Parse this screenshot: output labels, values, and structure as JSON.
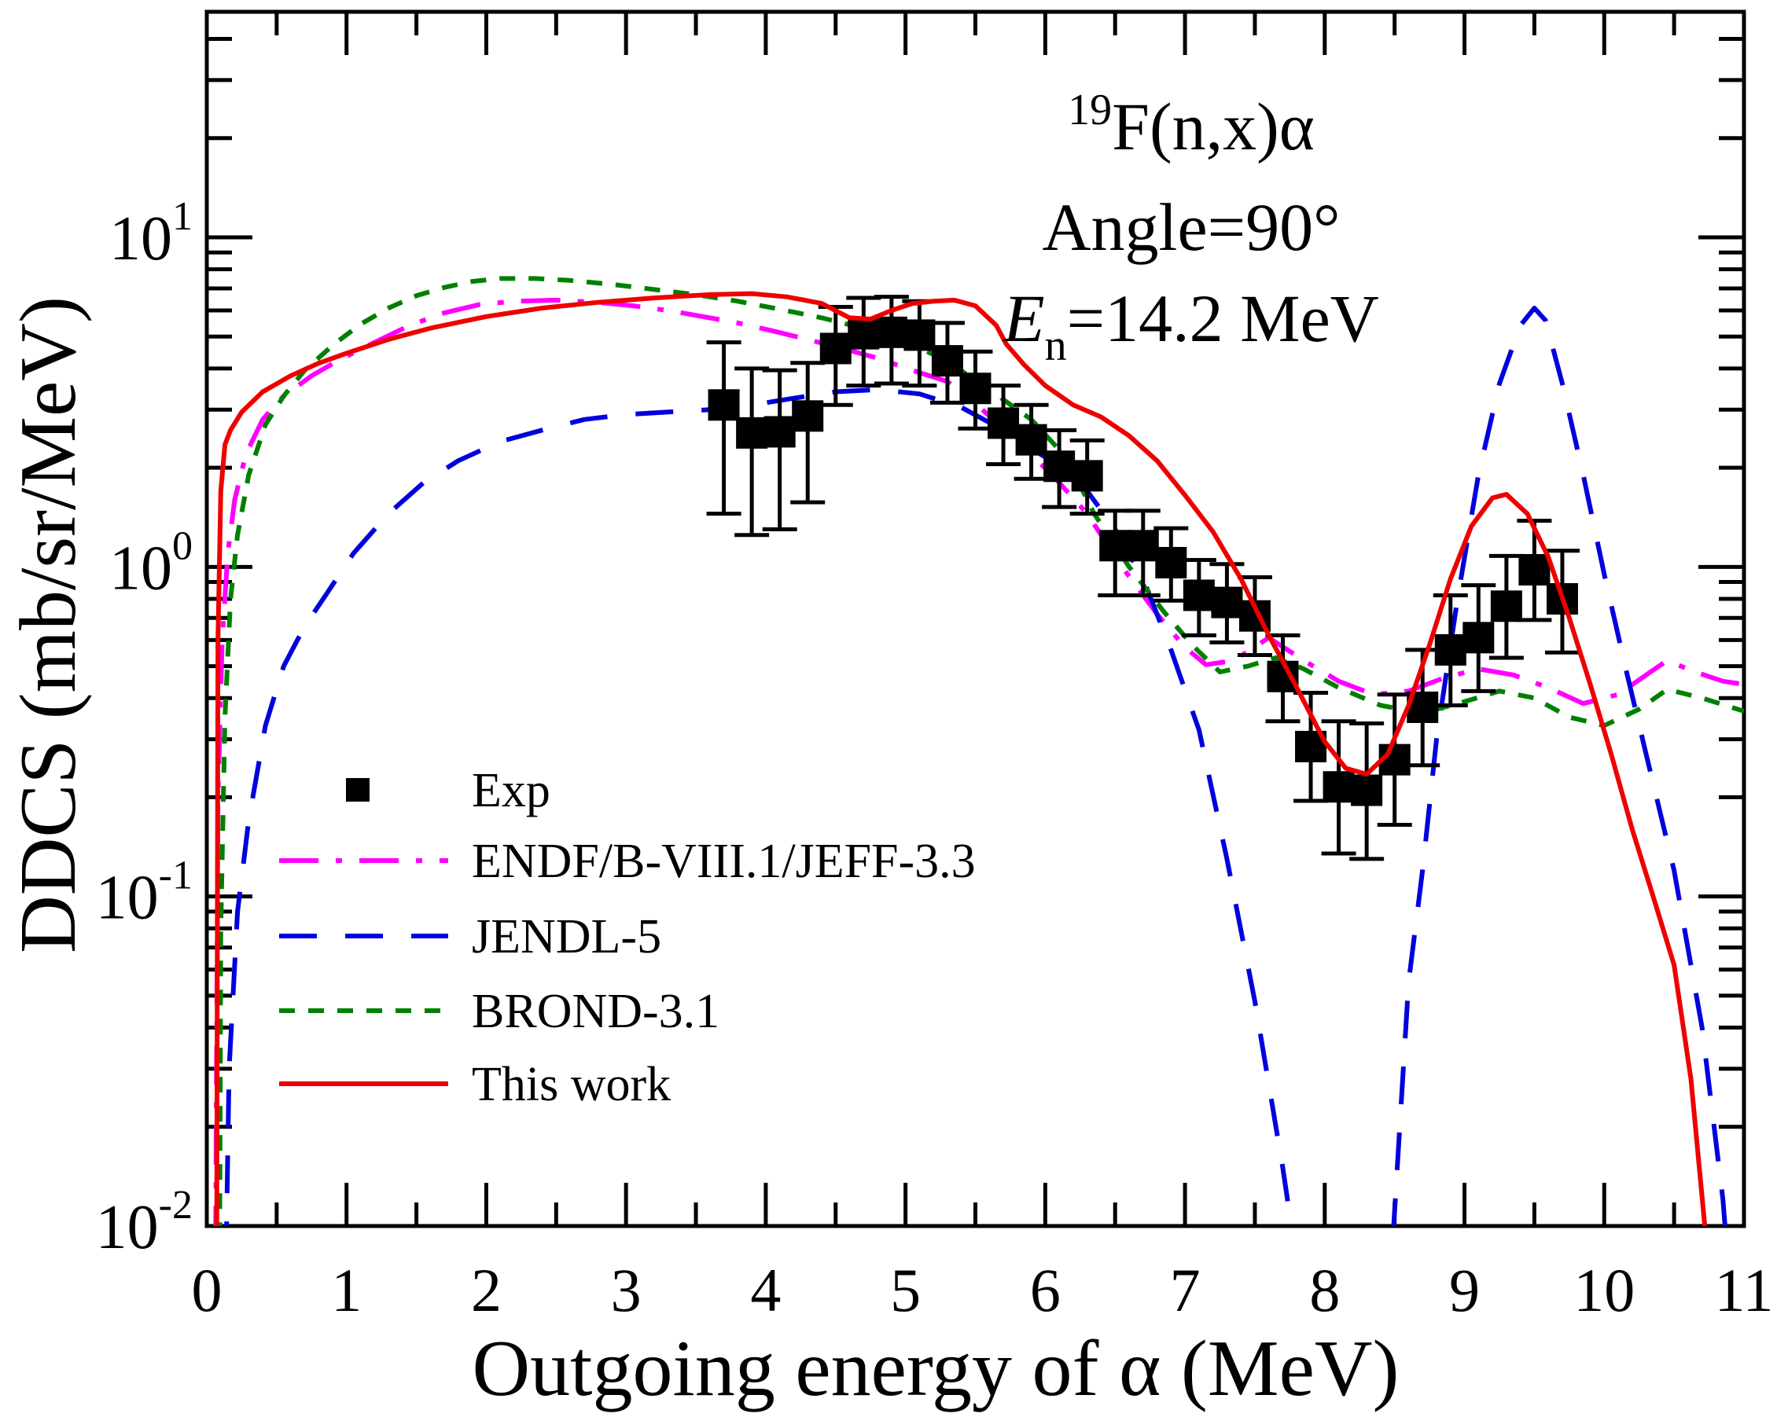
{
  "chart_data": {
    "type": "line",
    "title": "",
    "xlabel": "Outgoing energy of α (MeV)",
    "ylabel": "DDCS (mb/sr/MeV)",
    "x_axis": {
      "min": 0,
      "max": 11,
      "major_tick_step": 1,
      "minor_tick_step": 0.5,
      "tick_labels": [
        "0",
        "1",
        "2",
        "3",
        "4",
        "5",
        "6",
        "7",
        "8",
        "9",
        "10",
        "11"
      ]
    },
    "y_axis": {
      "scale": "log",
      "min": 0.01,
      "max": 48,
      "tick_values": [
        10,
        1,
        0.1,
        0.01
      ],
      "tick_labels": [
        {
          "base": "10",
          "exp": "1"
        },
        {
          "base": "10",
          "exp": "0"
        },
        {
          "base": "10",
          "exp": "-1"
        },
        {
          "base": "10",
          "exp": "-2"
        }
      ]
    },
    "annotations": [
      {
        "id": "reaction",
        "parts": [
          {
            "t": "19",
            "sup": true
          },
          {
            "t": "F(n,x)α"
          }
        ]
      },
      {
        "id": "angle",
        "parts": [
          {
            "t": "Angle=90°"
          }
        ]
      },
      {
        "id": "energy",
        "parts": [
          {
            "t": "E",
            "italic": true
          },
          {
            "t": "n",
            "sub": true
          },
          {
            "t": "=14.2 MeV"
          }
        ]
      }
    ],
    "exp": {
      "label": "Exp",
      "marker": "square",
      "color": "#000000",
      "points_format": [
        "E_MeV",
        "value",
        "err_low",
        "err_high"
      ],
      "points": [
        [
          3.7,
          3.1,
          1.45,
          4.8
        ],
        [
          3.9,
          2.55,
          1.25,
          4.0
        ],
        [
          4.1,
          2.57,
          1.3,
          3.95
        ],
        [
          4.3,
          2.87,
          1.57,
          4.16
        ],
        [
          4.5,
          4.6,
          3.1,
          6.15
        ],
        [
          4.7,
          5.1,
          3.55,
          6.55
        ],
        [
          4.9,
          5.15,
          3.6,
          6.6
        ],
        [
          5.1,
          5.05,
          3.55,
          6.4
        ],
        [
          5.3,
          4.22,
          3.15,
          5.5
        ],
        [
          5.5,
          3.48,
          2.63,
          4.5
        ],
        [
          5.7,
          2.73,
          2.05,
          3.55
        ],
        [
          5.9,
          2.43,
          1.85,
          3.1
        ],
        [
          6.1,
          2.02,
          1.52,
          2.6
        ],
        [
          6.3,
          1.89,
          1.45,
          2.42
        ],
        [
          6.5,
          1.16,
          0.82,
          1.48
        ],
        [
          6.7,
          1.16,
          0.82,
          1.48
        ],
        [
          6.9,
          1.03,
          0.79,
          1.31
        ],
        [
          7.1,
          0.82,
          0.62,
          1.05
        ],
        [
          7.3,
          0.78,
          0.59,
          1.02
        ],
        [
          7.5,
          0.71,
          0.54,
          0.93
        ],
        [
          7.7,
          0.465,
          0.34,
          0.62
        ],
        [
          7.9,
          0.285,
          0.195,
          0.415
        ],
        [
          8.1,
          0.215,
          0.135,
          0.34
        ],
        [
          8.3,
          0.21,
          0.13,
          0.335
        ],
        [
          8.5,
          0.26,
          0.165,
          0.41
        ],
        [
          8.7,
          0.375,
          0.25,
          0.56
        ],
        [
          8.9,
          0.56,
          0.38,
          0.82
        ],
        [
          9.1,
          0.61,
          0.42,
          0.88
        ],
        [
          9.3,
          0.76,
          0.53,
          1.08
        ],
        [
          9.5,
          0.98,
          0.69,
          1.38
        ],
        [
          9.7,
          0.8,
          0.55,
          1.12
        ]
      ]
    },
    "series": [
      {
        "name": "ENDF/B-VIII.1/JEFF-3.3",
        "color": "#ff00ff",
        "line_style": "dash-dot",
        "points": [
          [
            0.06,
            0.005
          ],
          [
            0.08,
            0.2
          ],
          [
            0.11,
            0.6
          ],
          [
            0.15,
            1.1
          ],
          [
            0.2,
            1.6
          ],
          [
            0.28,
            2.2
          ],
          [
            0.4,
            2.8
          ],
          [
            0.55,
            3.3
          ],
          [
            0.75,
            3.8
          ],
          [
            0.95,
            4.25
          ],
          [
            1.2,
            4.8
          ],
          [
            1.45,
            5.4
          ],
          [
            1.7,
            5.9
          ],
          [
            1.95,
            6.25
          ],
          [
            2.2,
            6.4
          ],
          [
            2.5,
            6.45
          ],
          [
            2.8,
            6.35
          ],
          [
            3.05,
            6.2
          ],
          [
            3.3,
            6.0
          ],
          [
            3.55,
            5.75
          ],
          [
            3.8,
            5.5
          ],
          [
            4.05,
            5.2
          ],
          [
            4.3,
            4.9
          ],
          [
            4.55,
            4.6
          ],
          [
            4.8,
            4.3
          ],
          [
            5.05,
            3.95
          ],
          [
            5.3,
            3.65
          ],
          [
            5.55,
            3.0
          ],
          [
            5.8,
            2.4
          ],
          [
            6.05,
            1.9
          ],
          [
            6.3,
            1.45
          ],
          [
            6.55,
            1.0
          ],
          [
            6.8,
            0.72
          ],
          [
            7.0,
            0.57
          ],
          [
            7.15,
            0.505
          ],
          [
            7.35,
            0.52
          ],
          [
            7.6,
            0.61
          ],
          [
            7.85,
            0.52
          ],
          [
            8.1,
            0.45
          ],
          [
            8.35,
            0.41
          ],
          [
            8.6,
            0.42
          ],
          [
            8.85,
            0.46
          ],
          [
            9.1,
            0.49
          ],
          [
            9.35,
            0.47
          ],
          [
            9.6,
            0.43
          ],
          [
            9.85,
            0.385
          ],
          [
            10.1,
            0.41
          ],
          [
            10.3,
            0.47
          ],
          [
            10.45,
            0.52
          ],
          [
            10.65,
            0.48
          ],
          [
            10.85,
            0.45
          ],
          [
            11.0,
            0.44
          ]
        ]
      },
      {
        "name": "JENDL-5",
        "color": "#0000dd",
        "line_style": "dashed",
        "points": [
          [
            0.13,
            0.005
          ],
          [
            0.16,
            0.03
          ],
          [
            0.22,
            0.09
          ],
          [
            0.3,
            0.17
          ],
          [
            0.42,
            0.33
          ],
          [
            0.55,
            0.5
          ],
          [
            0.7,
            0.66
          ],
          [
            0.85,
            0.82
          ],
          [
            1.05,
            1.1
          ],
          [
            1.3,
            1.45
          ],
          [
            1.55,
            1.8
          ],
          [
            1.8,
            2.1
          ],
          [
            2.1,
            2.4
          ],
          [
            2.4,
            2.6
          ],
          [
            2.7,
            2.8
          ],
          [
            3.0,
            2.9
          ],
          [
            3.3,
            2.95
          ],
          [
            3.6,
            3.0
          ],
          [
            3.9,
            3.1
          ],
          [
            4.2,
            3.25
          ],
          [
            4.5,
            3.4
          ],
          [
            4.8,
            3.45
          ],
          [
            5.1,
            3.35
          ],
          [
            5.4,
            3.05
          ],
          [
            5.7,
            2.6
          ],
          [
            6.0,
            2.15
          ],
          [
            6.3,
            1.7
          ],
          [
            6.5,
            1.3
          ],
          [
            6.7,
            0.92
          ],
          [
            6.9,
            0.56
          ],
          [
            7.1,
            0.32
          ],
          [
            7.3,
            0.13
          ],
          [
            7.5,
            0.048
          ],
          [
            7.7,
            0.015
          ],
          [
            7.9,
            0.004
          ],
          [
            8.2,
            0.002
          ],
          [
            8.45,
            0.005
          ],
          [
            8.6,
            0.055
          ],
          [
            8.7,
            0.12
          ],
          [
            8.8,
            0.3
          ],
          [
            8.95,
            0.8
          ],
          [
            9.1,
            1.9
          ],
          [
            9.25,
            3.6
          ],
          [
            9.4,
            5.4
          ],
          [
            9.5,
            6.1
          ],
          [
            9.58,
            5.6
          ],
          [
            9.7,
            3.6
          ],
          [
            9.85,
            1.9
          ],
          [
            10.0,
            0.95
          ],
          [
            10.15,
            0.5
          ],
          [
            10.3,
            0.27
          ],
          [
            10.5,
            0.12
          ],
          [
            10.7,
            0.04
          ],
          [
            10.85,
            0.012
          ],
          [
            10.92,
            0.005
          ]
        ]
      },
      {
        "name": "BROND-3.1",
        "color": "#008000",
        "line_style": "short-dash",
        "points": [
          [
            0.09,
            0.005
          ],
          [
            0.1,
            0.08
          ],
          [
            0.13,
            0.35
          ],
          [
            0.17,
            0.8
          ],
          [
            0.22,
            1.25
          ],
          [
            0.3,
            1.9
          ],
          [
            0.42,
            2.7
          ],
          [
            0.55,
            3.3
          ],
          [
            0.7,
            3.95
          ],
          [
            0.9,
            4.7
          ],
          [
            1.1,
            5.45
          ],
          [
            1.3,
            6.1
          ],
          [
            1.5,
            6.65
          ],
          [
            1.7,
            7.05
          ],
          [
            1.9,
            7.35
          ],
          [
            2.1,
            7.5
          ],
          [
            2.35,
            7.5
          ],
          [
            2.6,
            7.4
          ],
          [
            2.9,
            7.2
          ],
          [
            3.2,
            6.95
          ],
          [
            3.5,
            6.7
          ],
          [
            3.8,
            6.4
          ],
          [
            4.1,
            6.05
          ],
          [
            4.4,
            5.7
          ],
          [
            4.7,
            5.3
          ],
          [
            5.0,
            4.85
          ],
          [
            5.3,
            4.2
          ],
          [
            5.6,
            3.45
          ],
          [
            5.9,
            2.8
          ],
          [
            6.15,
            2.15
          ],
          [
            6.35,
            1.45
          ],
          [
            6.6,
            1.0
          ],
          [
            6.85,
            0.73
          ],
          [
            7.05,
            0.58
          ],
          [
            7.25,
            0.48
          ],
          [
            7.45,
            0.5
          ],
          [
            7.65,
            0.53
          ],
          [
            7.85,
            0.49
          ],
          [
            8.1,
            0.43
          ],
          [
            8.4,
            0.38
          ],
          [
            8.7,
            0.36
          ],
          [
            9.0,
            0.39
          ],
          [
            9.25,
            0.42
          ],
          [
            9.5,
            0.4
          ],
          [
            9.75,
            0.35
          ],
          [
            10.0,
            0.33
          ],
          [
            10.25,
            0.37
          ],
          [
            10.45,
            0.425
          ],
          [
            10.7,
            0.4
          ],
          [
            11.0,
            0.365
          ]
        ]
      },
      {
        "name": "This work",
        "color": "#ee0000",
        "line_style": "solid",
        "points": [
          [
            0.07,
            0.005
          ],
          [
            0.08,
            0.6
          ],
          [
            0.1,
            1.7
          ],
          [
            0.13,
            2.35
          ],
          [
            0.17,
            2.6
          ],
          [
            0.25,
            2.95
          ],
          [
            0.4,
            3.4
          ],
          [
            0.6,
            3.8
          ],
          [
            0.8,
            4.15
          ],
          [
            1.0,
            4.45
          ],
          [
            1.3,
            4.9
          ],
          [
            1.6,
            5.3
          ],
          [
            2.0,
            5.75
          ],
          [
            2.4,
            6.1
          ],
          [
            2.8,
            6.35
          ],
          [
            3.2,
            6.55
          ],
          [
            3.6,
            6.7
          ],
          [
            3.9,
            6.75
          ],
          [
            4.15,
            6.6
          ],
          [
            4.4,
            6.3
          ],
          [
            4.6,
            5.7
          ],
          [
            4.75,
            5.65
          ],
          [
            4.9,
            6.0
          ],
          [
            5.05,
            6.3
          ],
          [
            5.2,
            6.4
          ],
          [
            5.35,
            6.45
          ],
          [
            5.5,
            6.2
          ],
          [
            5.65,
            5.4
          ],
          [
            5.72,
            4.75
          ],
          [
            5.85,
            4.1
          ],
          [
            6.0,
            3.55
          ],
          [
            6.2,
            3.1
          ],
          [
            6.4,
            2.85
          ],
          [
            6.6,
            2.5
          ],
          [
            6.8,
            2.1
          ],
          [
            7.0,
            1.65
          ],
          [
            7.2,
            1.28
          ],
          [
            7.4,
            0.92
          ],
          [
            7.6,
            0.62
          ],
          [
            7.8,
            0.43
          ],
          [
            8.0,
            0.295
          ],
          [
            8.15,
            0.245
          ],
          [
            8.3,
            0.235
          ],
          [
            8.45,
            0.27
          ],
          [
            8.6,
            0.38
          ],
          [
            8.75,
            0.58
          ],
          [
            8.9,
            0.92
          ],
          [
            9.05,
            1.33
          ],
          [
            9.2,
            1.62
          ],
          [
            9.3,
            1.66
          ],
          [
            9.45,
            1.45
          ],
          [
            9.6,
            1.07
          ],
          [
            9.75,
            0.7
          ],
          [
            9.9,
            0.44
          ],
          [
            10.05,
            0.27
          ],
          [
            10.2,
            0.16
          ],
          [
            10.35,
            0.1
          ],
          [
            10.5,
            0.062
          ],
          [
            10.62,
            0.028
          ],
          [
            10.72,
            0.01
          ],
          [
            10.76,
            0.005
          ]
        ]
      }
    ],
    "legend": {
      "position": "inside-left-bottom",
      "items": [
        "Exp",
        "ENDF/B-VIII.1/JEFF-3.3",
        "JENDL-5",
        "BROND-3.1",
        "This work"
      ]
    },
    "grid": false
  }
}
